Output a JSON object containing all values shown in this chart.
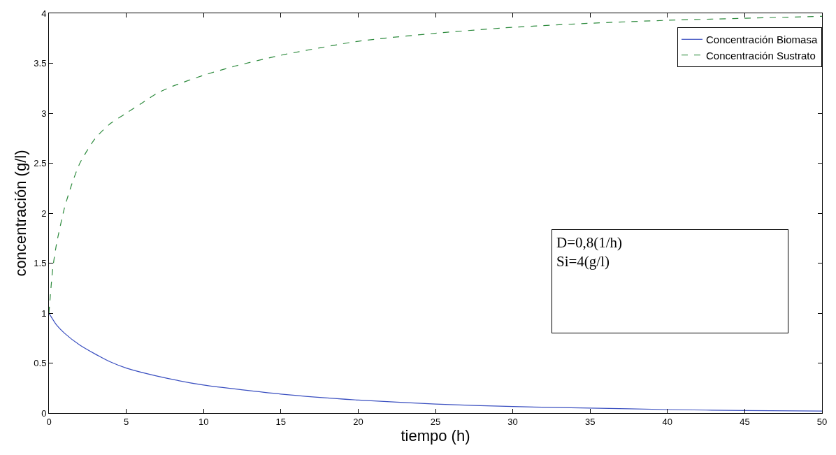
{
  "chart_data": {
    "type": "line",
    "xlabel": "tiempo (h)",
    "ylabel": "concentración (g/l)",
    "xlim": [
      0,
      50
    ],
    "xticks": [
      0,
      5,
      10,
      15,
      20,
      25,
      30,
      35,
      40,
      45,
      50
    ],
    "ylim": [
      0,
      4
    ],
    "yticks": [
      0,
      0.5,
      1,
      1.5,
      2,
      2.5,
      3,
      3.5,
      4
    ],
    "legend": "top right",
    "series": [
      {
        "name": "Concentración Biomasa",
        "color": "#3a4fc0",
        "line_style": "solid",
        "x": [
          0,
          0.5,
          1,
          2,
          3,
          4,
          5,
          7,
          10,
          15,
          20,
          25,
          30,
          35,
          40,
          45,
          50
        ],
        "values": [
          1.0,
          0.88,
          0.8,
          0.68,
          0.59,
          0.51,
          0.45,
          0.37,
          0.28,
          0.19,
          0.13,
          0.09,
          0.065,
          0.05,
          0.035,
          0.025,
          0.02
        ]
      },
      {
        "name": "Concentración Sustrato",
        "color": "#2e8b3e",
        "line_style": "dashed",
        "x": [
          0,
          0.25,
          0.5,
          1,
          1.5,
          2,
          3,
          4,
          5,
          6,
          7,
          8,
          10,
          12,
          15,
          20,
          25,
          30,
          35,
          40,
          45,
          50
        ],
        "values": [
          1.0,
          1.45,
          1.7,
          2.05,
          2.3,
          2.5,
          2.75,
          2.9,
          3.0,
          3.1,
          3.2,
          3.27,
          3.38,
          3.47,
          3.58,
          3.72,
          3.8,
          3.86,
          3.9,
          3.93,
          3.95,
          3.97
        ]
      }
    ],
    "annotations": [
      "D=0,8(1/h)",
      "Si=4(g/l)"
    ]
  }
}
